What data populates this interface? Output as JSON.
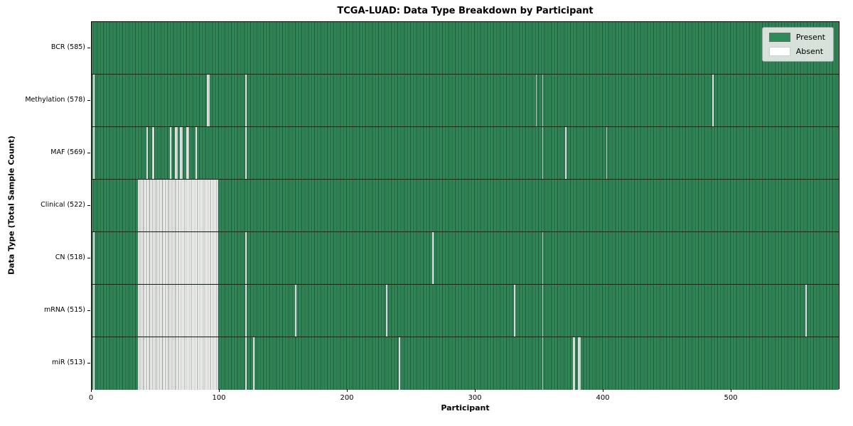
{
  "title": "TCGA-LUAD: Data Type Breakdown by Participant",
  "xlabel": "Participant",
  "ylabel": "Data Type (Total Sample Count)",
  "legend": {
    "present_label": "Present",
    "absent_label": "Absent"
  },
  "colors": {
    "present": "#2e8b57",
    "present_edge": "#185633",
    "absent": "#ffffff",
    "absent_edge": "#8d918d"
  },
  "chart_data": {
    "type": "heatmap",
    "title": "TCGA-LUAD: Data Type Breakdown by Participant",
    "xlabel": "Participant",
    "ylabel": "Data Type (Total Sample Count)",
    "x_ticks": [
      0,
      100,
      200,
      300,
      400,
      500
    ],
    "xlim": [
      0,
      585
    ],
    "n_participants": 585,
    "legend_entries": [
      "Present",
      "Absent"
    ],
    "legend_position": "upper right",
    "grid": false,
    "rows": [
      {
        "label": "BCR (585)",
        "data_type": "BCR",
        "sample_count": 585,
        "absent_ranges": []
      },
      {
        "label": "Methylation (578)",
        "data_type": "Methylation",
        "sample_count": 578,
        "absent_ranges": [
          [
            1,
            1
          ],
          [
            90,
            91
          ],
          [
            120,
            120
          ],
          [
            347,
            347
          ],
          [
            352,
            352
          ],
          [
            485,
            485
          ]
        ]
      },
      {
        "label": "MAF (569)",
        "data_type": "MAF",
        "sample_count": 569,
        "absent_ranges": [
          [
            1,
            1
          ],
          [
            43,
            43
          ],
          [
            47,
            48
          ],
          [
            61,
            61
          ],
          [
            65,
            66
          ],
          [
            69,
            70
          ],
          [
            74,
            75
          ],
          [
            81,
            81
          ],
          [
            120,
            120
          ],
          [
            352,
            352
          ],
          [
            370,
            370
          ],
          [
            402,
            402
          ]
        ]
      },
      {
        "label": "Clinical (522)",
        "data_type": "Clinical",
        "sample_count": 522,
        "absent_ranges": [
          [
            36,
            98
          ]
        ]
      },
      {
        "label": "CN (518)",
        "data_type": "CN",
        "sample_count": 518,
        "absent_ranges": [
          [
            1,
            1
          ],
          [
            36,
            98
          ],
          [
            120,
            120
          ],
          [
            266,
            266
          ],
          [
            352,
            352
          ]
        ]
      },
      {
        "label": "mRNA (515)",
        "data_type": "mRNA",
        "sample_count": 515,
        "absent_ranges": [
          [
            1,
            1
          ],
          [
            36,
            98
          ],
          [
            120,
            120
          ],
          [
            159,
            159
          ],
          [
            230,
            230
          ],
          [
            330,
            330
          ],
          [
            352,
            352
          ],
          [
            558,
            558
          ]
        ]
      },
      {
        "label": "miR (513)",
        "data_type": "miR",
        "sample_count": 513,
        "absent_ranges": [
          [
            1,
            1
          ],
          [
            36,
            98
          ],
          [
            120,
            120
          ],
          [
            126,
            126
          ],
          [
            240,
            240
          ],
          [
            352,
            352
          ],
          [
            376,
            377
          ],
          [
            380,
            381
          ]
        ]
      }
    ]
  }
}
